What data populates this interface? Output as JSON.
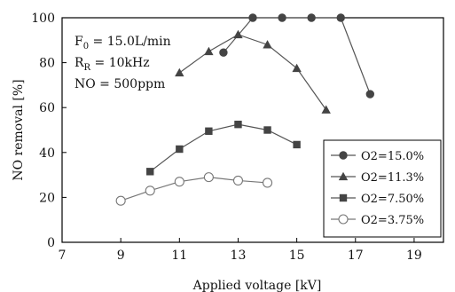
{
  "chart_data": {
    "type": "line",
    "title": "",
    "xlabel": "Applied voltage [kV]",
    "ylabel": "NO removal [%]",
    "xlim": [
      7,
      20
    ],
    "ylim": [
      0,
      100
    ],
    "xticks": [
      7,
      9,
      11,
      13,
      15,
      17,
      19
    ],
    "yticks": [
      0,
      20,
      40,
      60,
      80,
      100
    ],
    "grid": false,
    "legend_position": "bottom-right",
    "annotations": [
      {
        "base": "F",
        "sub": "0",
        "rest": " = 15.0L/min"
      },
      {
        "base": "R",
        "sub": "R",
        "rest": " = 10kHz"
      },
      {
        "base": "NO = 500ppm",
        "sub": "",
        "rest": ""
      }
    ],
    "series": [
      {
        "name": "O2=15.0%",
        "marker": "circle-filled",
        "x": [
          12.5,
          13.5,
          14.5,
          15.5,
          16.5,
          17.5
        ],
        "y": [
          84.5,
          100,
          100,
          100,
          100,
          66
        ]
      },
      {
        "name": "O2=11.3%",
        "marker": "triangle-filled",
        "x": [
          11,
          12,
          13,
          14,
          15,
          16
        ],
        "y": [
          75.5,
          85,
          92.5,
          88,
          77.5,
          59
        ]
      },
      {
        "name": "O2=7.50%",
        "marker": "square-filled",
        "x": [
          10,
          11,
          12,
          13,
          14,
          15
        ],
        "y": [
          31.5,
          41.5,
          49.5,
          52.5,
          50,
          43.5
        ]
      },
      {
        "name": "O2=3.75%",
        "marker": "circle-open",
        "x": [
          9,
          10,
          11,
          12,
          13,
          14
        ],
        "y": [
          18.5,
          23,
          27,
          29,
          27.5,
          26.5
        ]
      }
    ],
    "colors": {
      "line": "#555555",
      "marker": "#444444",
      "open_marker_stroke": "#777777",
      "axis": "#000000"
    }
  }
}
